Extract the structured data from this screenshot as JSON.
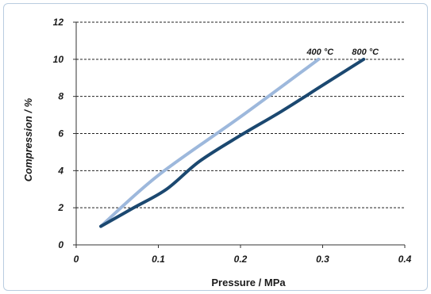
{
  "chart_data": {
    "type": "line",
    "title": "",
    "xlabel": "Pressure / MPa",
    "ylabel": "Compression / %",
    "xlim": [
      0,
      0.4
    ],
    "ylim": [
      0,
      12
    ],
    "x_ticks": [
      "0",
      "0.1",
      "0.2",
      "0.3",
      "0.4"
    ],
    "y_ticks": [
      "0",
      "2",
      "4",
      "6",
      "8",
      "10",
      "12"
    ],
    "grid": "horizontal dashed",
    "legend": "inline labels at line ends",
    "series": [
      {
        "name": "400 °C",
        "color": "#9db8dc",
        "x": [
          0.03,
          0.1,
          0.2,
          0.295
        ],
        "y": [
          1.0,
          3.75,
          6.9,
          10.0
        ]
      },
      {
        "name": "800 °C",
        "color": "#1b4870",
        "x": [
          0.03,
          0.07,
          0.11,
          0.15,
          0.2,
          0.25,
          0.3,
          0.35
        ],
        "y": [
          1.0,
          2.0,
          3.0,
          4.5,
          5.9,
          7.2,
          8.6,
          10.0
        ]
      }
    ]
  }
}
